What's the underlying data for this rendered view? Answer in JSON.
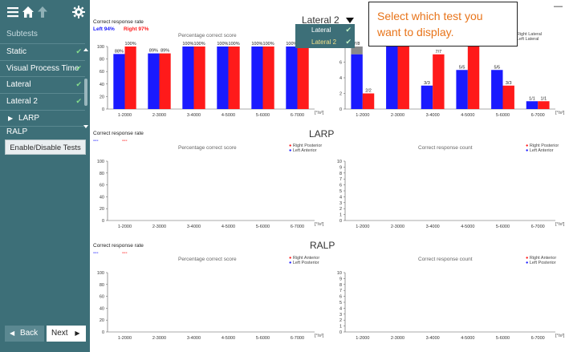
{
  "toolbar": {
    "menu_icon": "hamburger-menu-icon",
    "home_icon": "home-icon",
    "up_icon": "arrow-up-icon",
    "settings_icon": "gear-icon"
  },
  "sidebar": {
    "header": "Subtests",
    "items": [
      {
        "label": "Static",
        "checked": true
      },
      {
        "label": "Visual Process Time",
        "checked": true
      },
      {
        "label": "Lateral",
        "checked": true
      },
      {
        "label": "Lateral 2",
        "checked": true
      },
      {
        "label": "LARP",
        "checked": false,
        "expanded_icon": "play-arrow-icon"
      },
      {
        "label": "RALP",
        "checked": false
      }
    ],
    "enable_button": "Enable/Disable Tests",
    "back_button": "Back",
    "next_button": "Next"
  },
  "dropdown": {
    "items": [
      {
        "label": "Lateral",
        "checked": true
      },
      {
        "label": "Lateral 2",
        "checked": true
      }
    ]
  },
  "callout": "Select which test you want to display.",
  "sections": [
    {
      "title": "Lateral 2",
      "rate_label": "Correct response rate",
      "left_rate": "Left 94%",
      "right_rate": "Right 97%",
      "pct_title": "Percentage correct score",
      "count_title": "",
      "legend_right": "Right Lateral",
      "legend_left": "Left Lateral",
      "unit": "[°/s²]"
    },
    {
      "title": "LARP",
      "rate_label": "Correct response rate",
      "left_rate": "---",
      "right_rate": "---",
      "pct_title": "Percentage correct score",
      "count_title": "Correct response count",
      "legend_right": "Right Posterior",
      "legend_left": "Left Anterior",
      "unit": "[°/s²]"
    },
    {
      "title": "RALP",
      "rate_label": "Correct response rate",
      "left_rate": "---",
      "right_rate": "---",
      "pct_title": "Percentage correct score",
      "count_title": "Correct response count",
      "legend_right": "Right Anterior",
      "legend_left": "Left Posterior",
      "unit": "[°/s²]"
    }
  ],
  "chart_data": [
    {
      "type": "bar",
      "title": "Percentage correct score",
      "categories": [
        "1-2000",
        "2-3000",
        "3-4000",
        "4-5000",
        "5-6000",
        "6-7000"
      ],
      "ylim": [
        0,
        100
      ],
      "yticks": [
        0,
        20,
        40,
        60,
        80,
        100
      ],
      "series": [
        {
          "name": "Left Lateral",
          "color": "#1a1aff",
          "values": [
            88,
            89,
            100,
            100,
            100,
            100
          ],
          "labels": [
            "88%",
            "89%",
            "100%",
            "100%",
            "100%",
            "100%"
          ]
        },
        {
          "name": "Right Lateral",
          "color": "#ff1a1a",
          "values": [
            100,
            89,
            100,
            100,
            100,
            100
          ],
          "labels": [
            "100%",
            "89%",
            "100%",
            "100%",
            "100%",
            "100%"
          ]
        }
      ]
    },
    {
      "type": "bar",
      "title": "",
      "categories": [
        "1-2000",
        "2-3000",
        "3-4000",
        "4-5000",
        "5-6000",
        "6-7000"
      ],
      "ylim": [
        0,
        8
      ],
      "yticks": [
        0,
        2,
        4,
        6,
        8
      ],
      "series": [
        {
          "name": "Left Lateral",
          "color": "#1a1aff",
          "values": [
            7,
            8,
            3,
            5,
            5,
            1
          ],
          "totals": [
            8,
            9,
            3,
            5,
            5,
            1
          ],
          "labels": [
            "7/8",
            "8/9",
            "3/3",
            "5/5",
            "5/5",
            "1/1"
          ]
        },
        {
          "name": "Right Lateral",
          "color": "#ff1a1a",
          "values": [
            2,
            8,
            7,
            8,
            3,
            1
          ],
          "totals": [
            2,
            9,
            7,
            8,
            3,
            1
          ],
          "labels": [
            "2/2",
            "8/9",
            "7/7",
            "8/8",
            "3/3",
            "1/1"
          ]
        }
      ]
    },
    {
      "type": "bar",
      "title": "Percentage correct score",
      "categories": [
        "1-2000",
        "2-3000",
        "3-4000",
        "4-5000",
        "5-6000",
        "6-7000"
      ],
      "ylim": [
        0,
        100
      ],
      "yticks": [
        0,
        20,
        40,
        60,
        80,
        100
      ],
      "series": []
    },
    {
      "type": "bar",
      "title": "Correct response count",
      "categories": [
        "1-2000",
        "2-3000",
        "3-4000",
        "4-5000",
        "5-6000",
        "6-7000"
      ],
      "ylim": [
        0,
        10
      ],
      "yticks": [
        0,
        1,
        2,
        3,
        4,
        5,
        6,
        7,
        8,
        9,
        10
      ],
      "series": []
    },
    {
      "type": "bar",
      "title": "Percentage correct score",
      "categories": [
        "1-2000",
        "2-3000",
        "3-4000",
        "4-5000",
        "5-6000",
        "6-7000"
      ],
      "ylim": [
        0,
        100
      ],
      "yticks": [
        0,
        20,
        40,
        60,
        80,
        100
      ],
      "series": []
    },
    {
      "type": "bar",
      "title": "Correct response count",
      "categories": [
        "1-2000",
        "2-3000",
        "3-4000",
        "4-5000",
        "5-6000",
        "6-7000"
      ],
      "ylim": [
        0,
        10
      ],
      "yticks": [
        0,
        1,
        2,
        3,
        4,
        5,
        6,
        7,
        8,
        9,
        10
      ],
      "series": []
    }
  ]
}
